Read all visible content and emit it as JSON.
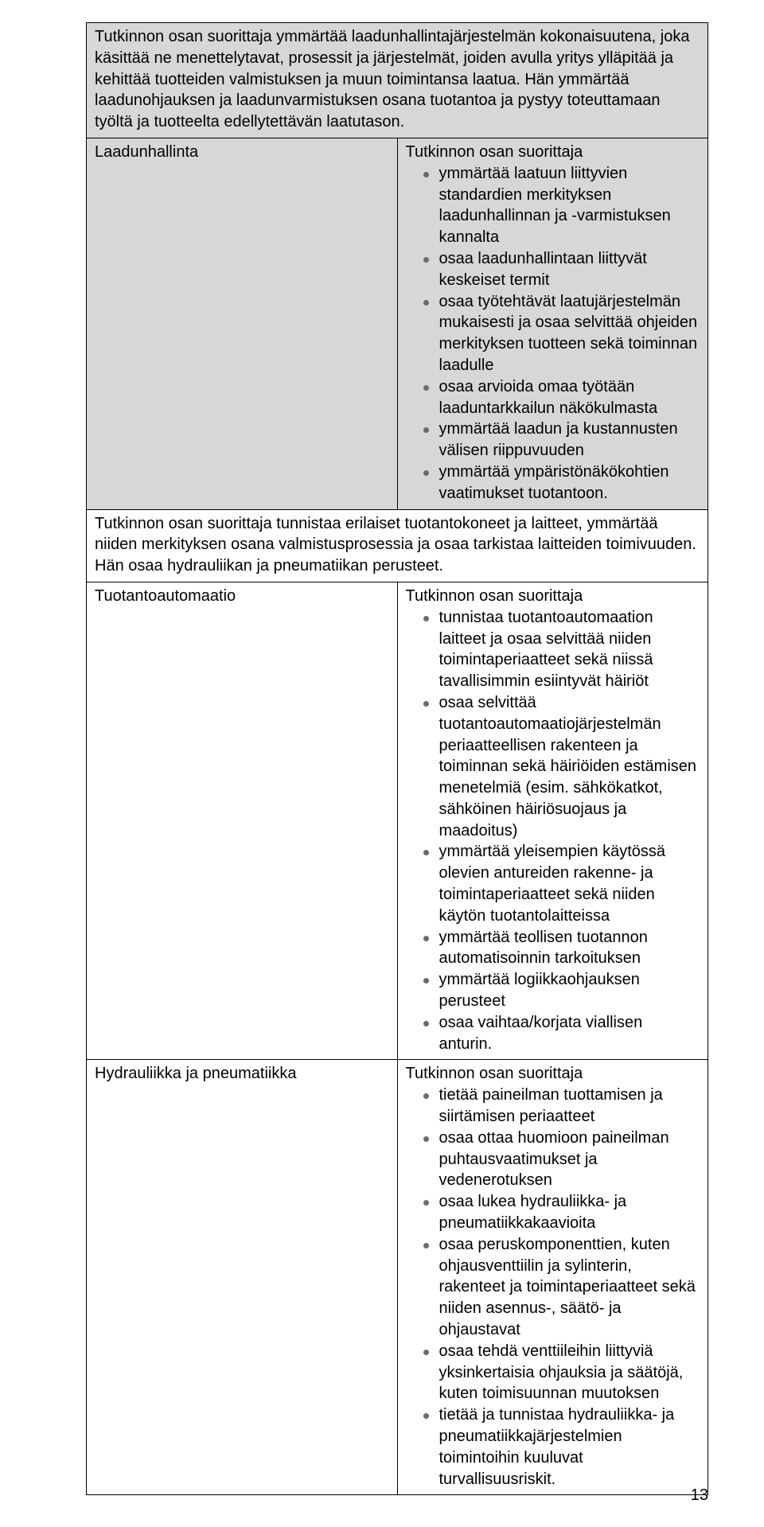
{
  "section1": {
    "header": "Tutkinnon osan suorittaja ymmärtää laadunhallintajärjestelmän kokonaisuutena, joka käsittää ne menettelytavat, prosessit ja järjestelmät, joiden avulla yritys ylläpitää ja kehittää tuotteiden valmistuksen ja muun toimintansa laatua. Hän ymmärtää laadunohjauksen ja laadunvarmistuksen osana tuotantoa ja pystyy toteuttamaan työltä ja tuotteelta edellytettävän laatutason.",
    "row": {
      "left": "Laadunhallinta",
      "intro": "Tutkinnon osan suorittaja",
      "items": [
        "ymmärtää laatuun liittyvien standardien merkityksen laadunhallinnan ja -varmistuksen kannalta",
        "osaa laadunhallintaan liittyvät keskeiset termit",
        "osaa työtehtävät laatujärjestelmän mukaisesti ja osaa selvittää ohjeiden merkityksen tuotteen sekä toiminnan laadulle",
        "osaa arvioida omaa työtään laaduntarkkailun näkökulmasta",
        "ymmärtää laadun ja kustannusten välisen riippuvuuden",
        "ymmärtää ympäristönäkökohtien vaatimukset tuotantoon."
      ]
    }
  },
  "section2": {
    "header": "Tutkinnon osan suorittaja tunnistaa erilaiset tuotantokoneet ja laitteet, ymmärtää niiden merkityksen osana valmistusprosessia ja osaa tarkistaa laitteiden toimivuuden. Hän osaa hydrauliikan ja pneumatiikan perusteet.",
    "row1": {
      "left": "Tuotantoautomaatio",
      "intro": "Tutkinnon osan suorittaja",
      "items": [
        "tunnistaa tuotantoautomaation laitteet ja osaa selvittää niiden toimintaperiaatteet sekä niissä tavallisimmin esiintyvät häiriöt",
        "osaa selvittää tuotantoautomaatiojärjestelmän periaatteellisen rakenteen ja toiminnan sekä häiriöiden estämisen menetelmiä (esim. sähkökatkot, sähköinen häiriösuojaus ja maadoitus)",
        "ymmärtää yleisempien käytössä olevien antureiden rakenne- ja toimintaperiaatteet sekä niiden käytön tuotantolaitteissa",
        "ymmärtää teollisen tuotannon automatisoinnin tarkoituksen",
        "ymmärtää logiikkaohjauksen perusteet",
        "osaa vaihtaa/korjata viallisen anturin."
      ]
    },
    "row2": {
      "left": "Hydrauliikka ja pneumatiikka",
      "intro": "Tutkinnon osan suorittaja",
      "items": [
        "tietää paineilman tuottamisen ja siirtämisen periaatteet",
        "osaa ottaa huomioon paineilman puhtausvaatimukset ja vedenerotuksen",
        "osaa lukea hydrauliikka- ja pneumatiikkakaavioita",
        "osaa peruskomponenttien, kuten ohjausventtiilin ja sylinterin, rakenteet ja toimintaperiaatteet sekä niiden asennus-, säätö- ja ohjaustavat",
        "osaa tehdä venttiileihin liittyviä yksinkertaisia ohjauksia ja säätöjä, kuten toimisuunnan muutoksen",
        "tietää ja tunnistaa hydrauliikka- ja pneumatiikkajärjestelmien toimintoihin kuuluvat turvallisuusriskit."
      ]
    }
  },
  "page_number": "13"
}
